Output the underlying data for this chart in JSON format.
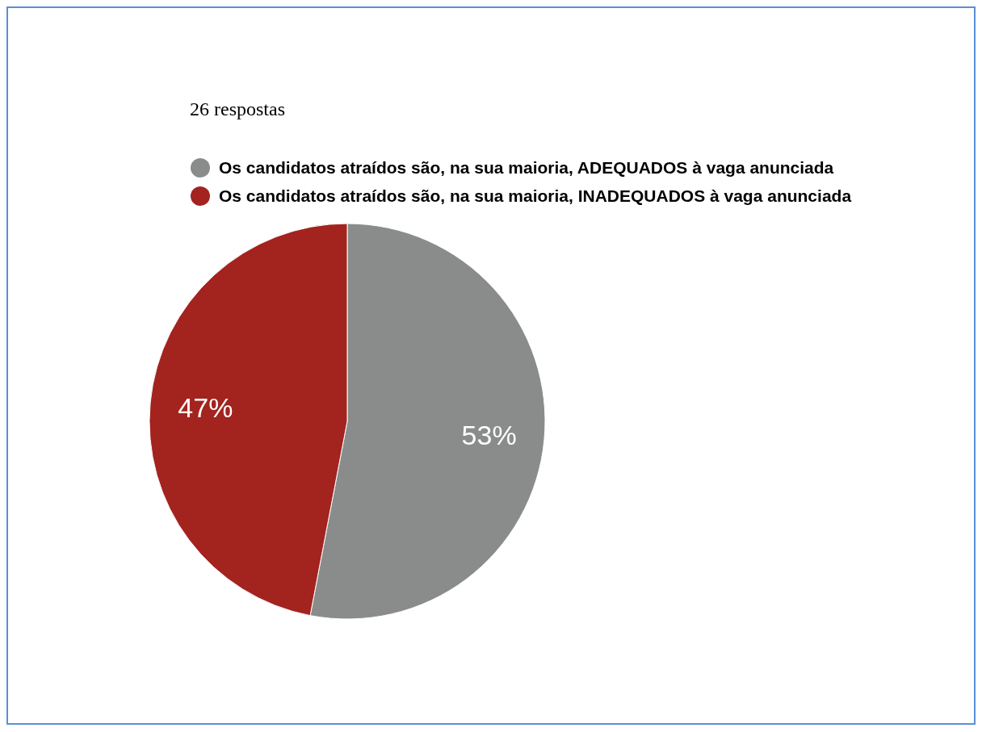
{
  "chart_data": {
    "type": "pie",
    "title": "26 respostas",
    "categories": [
      "Os candidatos atraídos são, na sua maioria, ADEQUADOS à vaga anunciada",
      "Os candidatos atraídos são, na sua maioria, INADEQUADOS à vaga anunciada"
    ],
    "values": [
      53,
      47
    ],
    "colors": [
      "#8a8c8c",
      "#a3231f"
    ],
    "legend": "top",
    "value_labels": [
      "53%",
      "47%"
    ]
  }
}
